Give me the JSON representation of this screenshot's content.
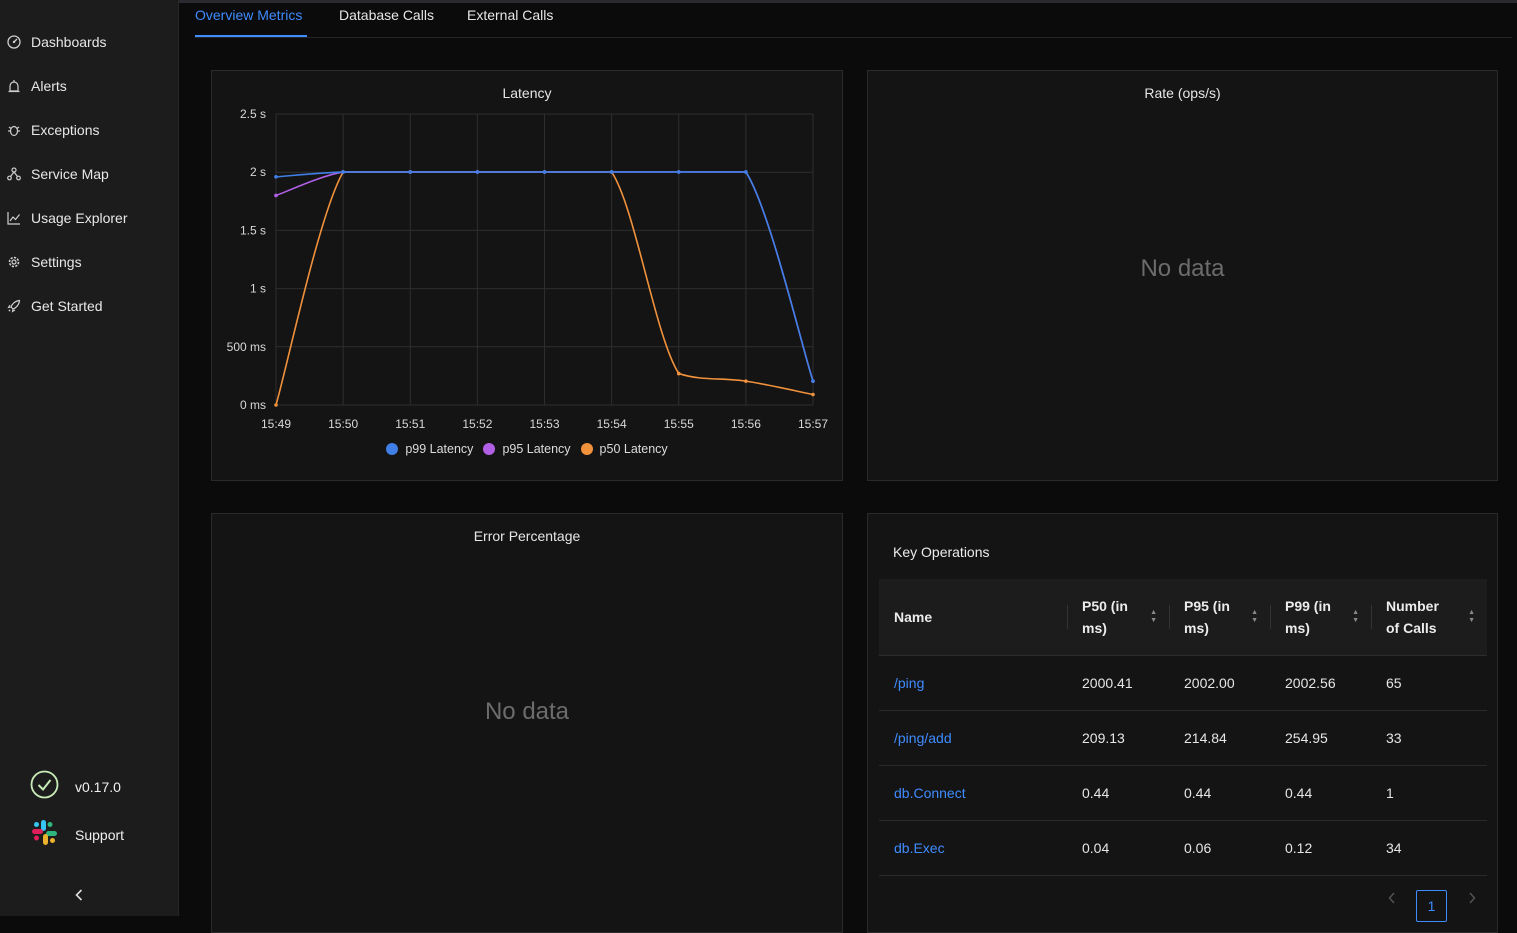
{
  "sidebar": {
    "items": [
      {
        "label": "Dashboards",
        "icon": "dashboard-icon"
      },
      {
        "label": "Alerts",
        "icon": "alarm-icon"
      },
      {
        "label": "Exceptions",
        "icon": "bug-icon"
      },
      {
        "label": "Service Map",
        "icon": "deployment-unit-icon"
      },
      {
        "label": "Usage Explorer",
        "icon": "line-chart-icon"
      },
      {
        "label": "Settings",
        "icon": "gear-icon"
      },
      {
        "label": "Get Started",
        "icon": "rocket-icon"
      }
    ],
    "version": "v0.17.0",
    "support": "Support"
  },
  "tabs": [
    "Overview Metrics",
    "Database Calls",
    "External Calls"
  ],
  "panels": {
    "latency_title": "Latency",
    "rate_title": "Rate (ops/s)",
    "error_title": "Error Percentage",
    "key_ops_title": "Key Operations",
    "no_data": "No data"
  },
  "chart_data": {
    "type": "line",
    "title": "Latency",
    "x": [
      "15:49",
      "15:50",
      "15:51",
      "15:52",
      "15:53",
      "15:54",
      "15:55",
      "15:56",
      "15:57"
    ],
    "y_ticks": [
      "0 ms",
      "500 ms",
      "1 s",
      "1.5 s",
      "2 s",
      "2.5 s"
    ],
    "y_tick_values": [
      0,
      500,
      1000,
      1500,
      2000,
      2500
    ],
    "ylim": [
      0,
      2500
    ],
    "series": [
      {
        "name": "p99 Latency",
        "color": "#3f7fe6",
        "values": [
          1960,
          2002,
          2002,
          2002,
          2002,
          2002,
          2002,
          2002,
          205
        ]
      },
      {
        "name": "p95 Latency",
        "color": "#b160e6",
        "values": [
          1800,
          2002,
          2002,
          2002,
          2002,
          2002,
          2002,
          2002,
          205
        ]
      },
      {
        "name": "p50 Latency",
        "color": "#f0913c",
        "values": [
          0,
          2002,
          2002,
          2002,
          2002,
          2002,
          270,
          205,
          90
        ]
      }
    ],
    "grid": true,
    "legend": "bottom"
  },
  "key_operations": {
    "headers": [
      {
        "l1": "Name",
        "l2": ""
      },
      {
        "l1": "P50 (in",
        "l2": "ms)"
      },
      {
        "l1": "P95 (in",
        "l2": "ms)"
      },
      {
        "l1": "P99 (in",
        "l2": "ms)"
      },
      {
        "l1": "Number",
        "l2": "of Calls"
      }
    ],
    "rows": [
      [
        "/ping",
        "2000.41",
        "2002.00",
        "2002.56",
        "65"
      ],
      [
        "/ping/add",
        "209.13",
        "214.84",
        "254.95",
        "33"
      ],
      [
        "db.Connect",
        "0.44",
        "0.44",
        "0.44",
        "1"
      ],
      [
        "db.Exec",
        "0.04",
        "0.06",
        "0.12",
        "34"
      ]
    ],
    "page": "1"
  },
  "colors": {
    "accent": "#3f8cff",
    "background": "#0b0b0b",
    "panel": "#141414"
  }
}
